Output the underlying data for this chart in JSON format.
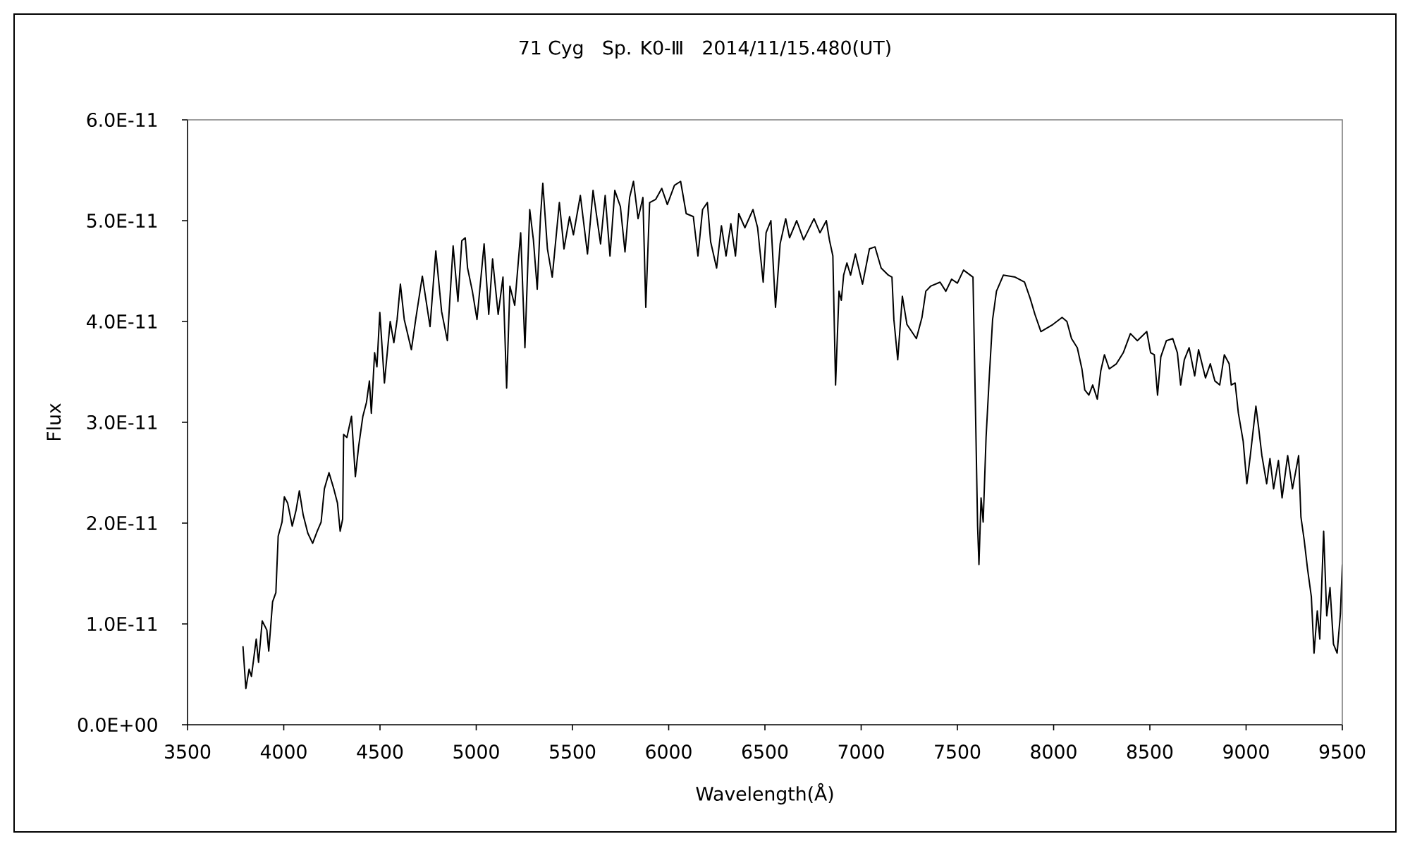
{
  "chart_data": {
    "type": "line",
    "title": "71 Cyg   Sp. K0-Ⅲ   2014/11/15.480(UT)",
    "xlabel": "Wavelength(Å)",
    "ylabel": "Flux",
    "color": "#000000",
    "xlim": [
      3500,
      9500
    ],
    "xticks": [
      3500,
      4000,
      4500,
      5000,
      5500,
      6000,
      6500,
      7000,
      7500,
      8000,
      8500,
      9000,
      9500
    ],
    "ylim": [
      0,
      6e-11
    ],
    "yticks": [
      {
        "value": 0,
        "label": "0.0E+00"
      },
      {
        "value": 1e-11,
        "label": "1.0E-11"
      },
      {
        "value": 2e-11,
        "label": "2.0E-11"
      },
      {
        "value": 3e-11,
        "label": "3.0E-11"
      },
      {
        "value": 4e-11,
        "label": "4.0E-11"
      },
      {
        "value": 5e-11,
        "label": "5.0E-11"
      },
      {
        "value": 6e-11,
        "label": "6.0E-11"
      }
    ],
    "x": [
      3788,
      3803,
      3820,
      3832,
      3857,
      3869,
      3888,
      3912,
      3922,
      3942,
      3959,
      3971,
      3991,
      4003,
      4020,
      4044,
      4064,
      4081,
      4101,
      4125,
      4150,
      4174,
      4194,
      4211,
      4235,
      4260,
      4279,
      4293,
      4306,
      4311,
      4328,
      4352,
      4372,
      4389,
      4411,
      4430,
      4445,
      4455,
      4472,
      4484,
      4499,
      4523,
      4553,
      4572,
      4589,
      4606,
      4626,
      4663,
      4687,
      4720,
      4760,
      4790,
      4820,
      4850,
      4880,
      4905,
      4925,
      4943,
      4955,
      4980,
      5004,
      5041,
      5065,
      5085,
      5114,
      5139,
      5158,
      5175,
      5200,
      5231,
      5253,
      5278,
      5297,
      5317,
      5334,
      5346,
      5370,
      5395,
      5432,
      5456,
      5485,
      5505,
      5541,
      5578,
      5607,
      5646,
      5670,
      5695,
      5720,
      5749,
      5773,
      5797,
      5817,
      5841,
      5866,
      5881,
      5901,
      5932,
      5964,
      5993,
      6030,
      6062,
      6091,
      6128,
      6152,
      6176,
      6201,
      6218,
      6249,
      6274,
      6298,
      6323,
      6347,
      6364,
      6396,
      6438,
      6462,
      6491,
      6506,
      6531,
      6555,
      6579,
      6608,
      6628,
      6665,
      6701,
      6755,
      6786,
      6819,
      6835,
      6853,
      6867,
      6885,
      6897,
      6909,
      6926,
      6945,
      6970,
      7007,
      7043,
      7072,
      7104,
      7141,
      7160,
      7170,
      7190,
      7214,
      7238,
      7287,
      7316,
      7336,
      7361,
      7410,
      7440,
      7470,
      7500,
      7532,
      7581,
      7593,
      7605,
      7612,
      7623,
      7634,
      7649,
      7666,
      7683,
      7703,
      7739,
      7800,
      7849,
      7878,
      7903,
      7934,
      7996,
      8044,
      8069,
      8093,
      8123,
      8147,
      8162,
      8183,
      8203,
      8227,
      8245,
      8264,
      8289,
      8326,
      8362,
      8399,
      8435,
      8484,
      8504,
      8523,
      8540,
      8557,
      8586,
      8619,
      8643,
      8660,
      8679,
      8704,
      8733,
      8753,
      8789,
      8814,
      8838,
      8863,
      8887,
      8912,
      8923,
      8943,
      8960,
      8985,
      9004,
      9022,
      9051,
      9065,
      9082,
      9107,
      9124,
      9143,
      9168,
      9187,
      9216,
      9241,
      9273,
      9285,
      9302,
      9319,
      9339,
      9353,
      9370,
      9383,
      9403,
      9419,
      9436,
      9454,
      9473,
      9490,
      9500
    ],
    "values": [
      7.8e-12,
      3.6e-12,
      5.5e-12,
      4.8e-12,
      8.5e-12,
      6.2e-12,
      1.03e-11,
      9.4e-12,
      7.3e-12,
      1.22e-11,
      1.31e-11,
      1.87e-11,
      2.01e-11,
      2.26e-11,
      2.2e-11,
      1.97e-11,
      2.13e-11,
      2.32e-11,
      2.08e-11,
      1.9e-11,
      1.8e-11,
      1.92e-11,
      2.01e-11,
      2.34e-11,
      2.5e-11,
      2.34e-11,
      2.2e-11,
      1.92e-11,
      2.04e-11,
      2.88e-11,
      2.85e-11,
      3.06e-11,
      2.46e-11,
      2.76e-11,
      3.06e-11,
      3.2e-11,
      3.41e-11,
      3.09e-11,
      3.69e-11,
      3.55e-11,
      4.09e-11,
      3.39e-11,
      4e-11,
      3.79e-11,
      4.02e-11,
      4.37e-11,
      4.02e-11,
      3.72e-11,
      4.04e-11,
      4.45e-11,
      3.95e-11,
      4.7e-11,
      4.1e-11,
      3.81e-11,
      4.75e-11,
      4.2e-11,
      4.8e-11,
      4.83e-11,
      4.53e-11,
      4.3e-11,
      4.02e-11,
      4.77e-11,
      4.07e-11,
      4.62e-11,
      4.07e-11,
      4.44e-11,
      3.34e-11,
      4.35e-11,
      4.16e-11,
      4.88e-11,
      3.74e-11,
      5.11e-11,
      4.81e-11,
      4.32e-11,
      5.04e-11,
      5.37e-11,
      4.72e-11,
      4.44e-11,
      5.18e-11,
      4.72e-11,
      5.04e-11,
      4.86e-11,
      5.25e-11,
      4.67e-11,
      5.3e-11,
      4.77e-11,
      5.25e-11,
      4.65e-11,
      5.3e-11,
      5.14e-11,
      4.69e-11,
      5.23e-11,
      5.39e-11,
      5.02e-11,
      5.23e-11,
      4.14e-11,
      5.18e-11,
      5.21e-11,
      5.32e-11,
      5.16e-11,
      5.35e-11,
      5.39e-11,
      5.07e-11,
      5.04e-11,
      4.65e-11,
      5.11e-11,
      5.18e-11,
      4.79e-11,
      4.53e-11,
      4.95e-11,
      4.65e-11,
      4.97e-11,
      4.65e-11,
      5.07e-11,
      4.93e-11,
      5.11e-11,
      4.93e-11,
      4.39e-11,
      4.88e-11,
      5e-11,
      4.14e-11,
      4.77e-11,
      5.02e-11,
      4.83e-11,
      5e-11,
      4.81e-11,
      5.02e-11,
      4.88e-11,
      5e-11,
      4.81e-11,
      4.65e-11,
      3.37e-11,
      4.3e-11,
      4.21e-11,
      4.46e-11,
      4.58e-11,
      4.46e-11,
      4.67e-11,
      4.37e-11,
      4.72e-11,
      4.74e-11,
      4.53e-11,
      4.46e-11,
      4.44e-11,
      4.02e-11,
      3.62e-11,
      4.25e-11,
      3.97e-11,
      3.83e-11,
      4.04e-11,
      4.3e-11,
      4.35e-11,
      4.39e-11,
      4.3e-11,
      4.42e-11,
      4.38e-11,
      4.51e-11,
      4.44e-11,
      3.23e-11,
      1.97e-11,
      1.59e-11,
      2.25e-11,
      2.01e-11,
      2.85e-11,
      3.46e-11,
      4.02e-11,
      4.3e-11,
      4.46e-11,
      4.44e-11,
      4.39e-11,
      4.23e-11,
      4.07e-11,
      3.9e-11,
      3.97e-11,
      4.04e-11,
      4e-11,
      3.83e-11,
      3.74e-11,
      3.53e-11,
      3.32e-11,
      3.27e-11,
      3.37e-11,
      3.23e-11,
      3.51e-11,
      3.67e-11,
      3.53e-11,
      3.58e-11,
      3.69e-11,
      3.88e-11,
      3.81e-11,
      3.9e-11,
      3.69e-11,
      3.67e-11,
      3.27e-11,
      3.65e-11,
      3.81e-11,
      3.83e-11,
      3.69e-11,
      3.37e-11,
      3.62e-11,
      3.74e-11,
      3.46e-11,
      3.72e-11,
      3.44e-11,
      3.58e-11,
      3.41e-11,
      3.37e-11,
      3.67e-11,
      3.58e-11,
      3.37e-11,
      3.39e-11,
      3.09e-11,
      2.81e-11,
      2.39e-11,
      2.67e-11,
      3.16e-11,
      2.95e-11,
      2.67e-11,
      2.39e-11,
      2.64e-11,
      2.34e-11,
      2.62e-11,
      2.25e-11,
      2.67e-11,
      2.34e-11,
      2.67e-11,
      2.06e-11,
      1.83e-11,
      1.55e-11,
      1.27e-11,
      7.1e-12,
      1.13e-11,
      8.5e-12,
      1.92e-11,
      1.08e-11,
      1.36e-11,
      8e-12,
      7.1e-12,
      1.1e-11,
      1.59e-11
    ]
  }
}
